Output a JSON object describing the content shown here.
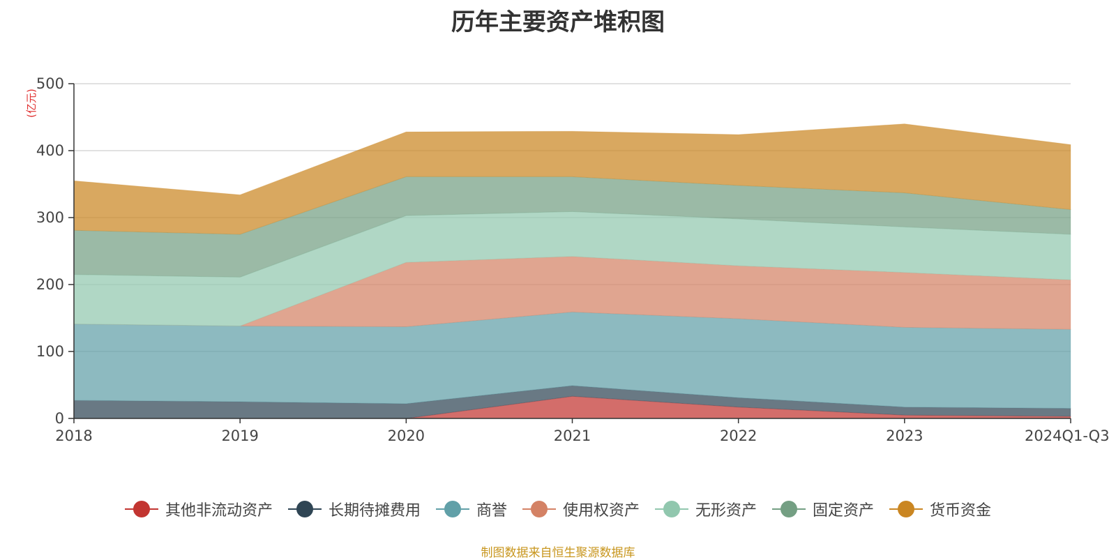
{
  "colors": {
    "其他非流动资产": "#c23531",
    "长期待摊费用": "#2f4554",
    "商誉": "#61a0a8",
    "使用权资产": "#d48265",
    "无形资产": "#91c7ae",
    "固定资产": "#749f83",
    "货币资金": "#ca8622",
    "source": "#c8961e",
    "unit": "#e03030"
  },
  "chart_data": {
    "type": "area",
    "stacked": true,
    "title": "历年主要资产堆积图",
    "unit_label": "(亿元)",
    "x": [
      "2018",
      "2019",
      "2020",
      "2021",
      "2022",
      "2023",
      "2024Q1-Q3"
    ],
    "ylim": [
      0,
      500
    ],
    "yticks": [
      0,
      100,
      200,
      300,
      400,
      500
    ],
    "grid": true,
    "legend_position": "bottom",
    "series": [
      {
        "name": "其他非流动资产",
        "values": [
          0,
          0,
          0,
          33,
          17,
          5,
          3
        ]
      },
      {
        "name": "长期待摊费用",
        "values": [
          27,
          25,
          22,
          16,
          14,
          12,
          12
        ]
      },
      {
        "name": "商誉",
        "values": [
          114,
          113,
          115,
          110,
          118,
          119,
          118
        ]
      },
      {
        "name": "使用权资产",
        "values": [
          0,
          0,
          96,
          83,
          79,
          82,
          74
        ]
      },
      {
        "name": "无形资产",
        "values": [
          74,
          73,
          70,
          67,
          70,
          68,
          68
        ]
      },
      {
        "name": "固定资产",
        "values": [
          66,
          64,
          58,
          52,
          50,
          51,
          37
        ]
      },
      {
        "name": "货币资金",
        "values": [
          74,
          59,
          67,
          68,
          76,
          103,
          97
        ]
      }
    ]
  },
  "legend": [
    {
      "name": "其他非流动资产",
      "color": "#c23531"
    },
    {
      "name": "长期待摊费用",
      "color": "#2f4554"
    },
    {
      "name": "商誉",
      "color": "#61a0a8"
    },
    {
      "name": "使用权资产",
      "color": "#d48265"
    },
    {
      "name": "无形资产",
      "color": "#91c7ae"
    },
    {
      "name": "固定资产",
      "color": "#749f83"
    },
    {
      "name": "货币资金",
      "color": "#ca8622"
    }
  ],
  "footer": {
    "source": "制图数据来自恒生聚源数据库"
  }
}
